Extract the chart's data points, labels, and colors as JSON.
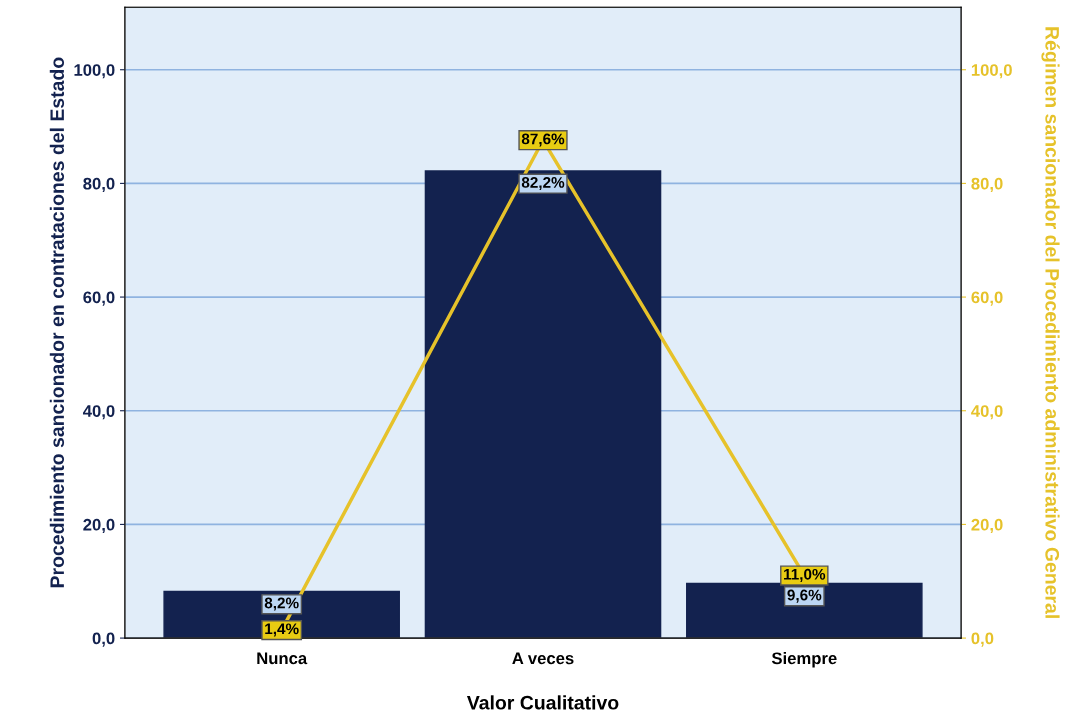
{
  "chart_data": {
    "type": "bar",
    "categories": [
      "Nunca",
      "A veces",
      "Siempre"
    ],
    "xlabel": "Valor Cualitativo",
    "ylabel": "Procedimiento sancionador en contrataciones del Estado",
    "y2label": "Régimen sancionador del Procedimiento administrativo General",
    "series": [
      {
        "color": "#13224f",
        "values": [
          8.2,
          82.2,
          9.6
        ],
        "value_labels": [
          "8,2%",
          "82,2%",
          "9,6%"
        ]
      },
      {
        "type": "line",
        "axis": "y2",
        "color": "#e6c22a",
        "values": [
          1.4,
          87.6,
          11.0
        ],
        "value_labels": [
          "1,4%",
          "87,6%",
          "11,0%"
        ]
      }
    ],
    "ylim": [
      0,
      111
    ],
    "yticks": [
      {
        "value": 0,
        "label": "0,0"
      },
      {
        "value": 20,
        "label": "20,0"
      },
      {
        "value": 40,
        "label": "40,0"
      },
      {
        "value": 60,
        "label": "60,0"
      },
      {
        "value": 80,
        "label": "80,0"
      },
      {
        "value": 100,
        "label": "100,0"
      }
    ],
    "y2lim": [
      0,
      111
    ],
    "y2ticks": [
      {
        "value": 0,
        "label": "0,0"
      },
      {
        "value": 20,
        "label": "20,0"
      },
      {
        "value": 40,
        "label": "40,0"
      },
      {
        "value": 60,
        "label": "60,0"
      },
      {
        "value": 80,
        "label": "80,0"
      },
      {
        "value": 100,
        "label": "100,0"
      }
    ],
    "grid": "y",
    "legend": false
  }
}
